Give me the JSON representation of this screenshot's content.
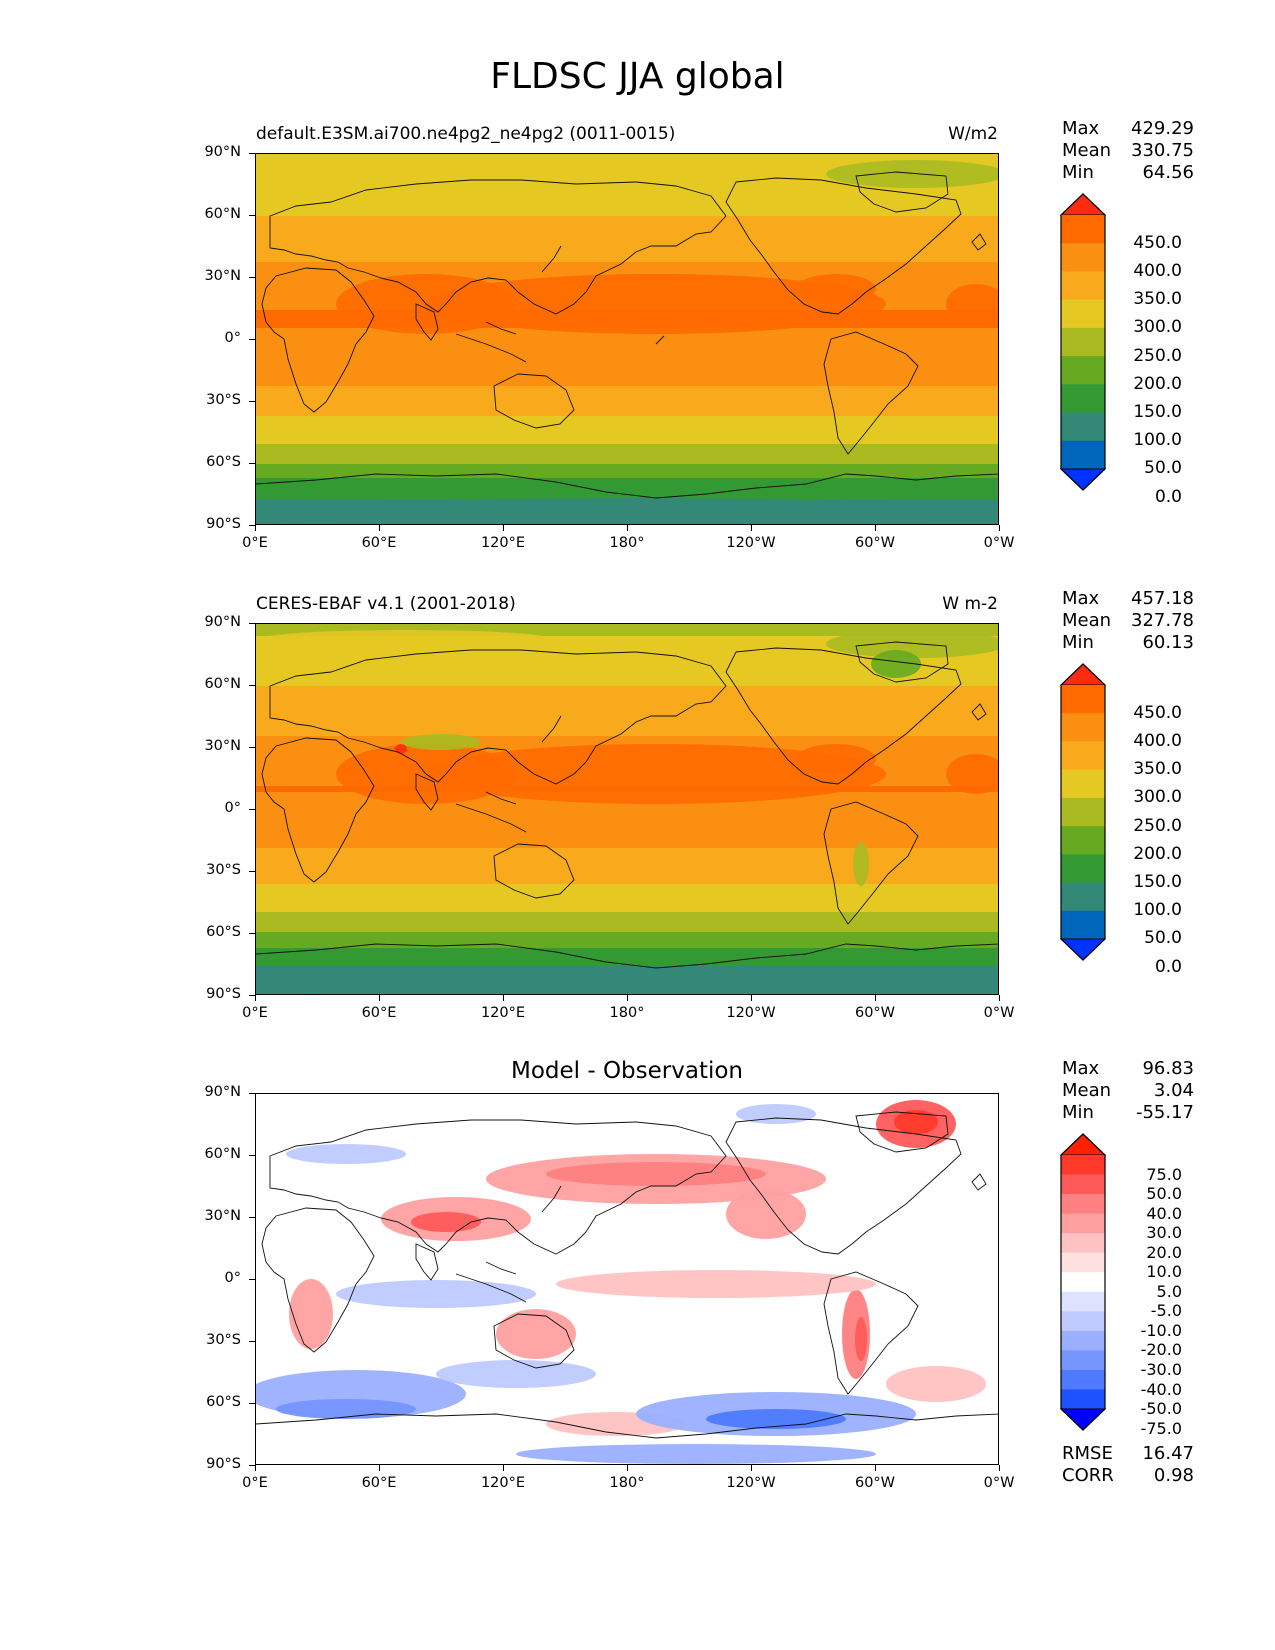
{
  "figure": {
    "title": "FLDSC JJA global"
  },
  "chart_data": [
    {
      "type": "heatmap",
      "title": "default.E3SM.ai700.ne4pg2_ne4pg2 (0011-0015)",
      "units": "W/m2",
      "x_ticks": [
        "0°E",
        "60°E",
        "120°E",
        "180°",
        "120°W",
        "60°W",
        "0°W"
      ],
      "y_ticks": [
        "90°N",
        "60°N",
        "30°N",
        "0°",
        "30°S",
        "60°S",
        "90°S"
      ],
      "stats": {
        "Max": "429.29",
        "Mean": "330.75",
        "Min": "64.56"
      },
      "colorbar_levels": [
        "450.0",
        "400.0",
        "350.0",
        "300.0",
        "250.0",
        "200.0",
        "150.0",
        "100.0",
        "50.0",
        "0.0"
      ],
      "colors": [
        "#0033ff",
        "#0066bb",
        "#338877",
        "#339933",
        "#66aa22",
        "#aabb22",
        "#e6c822",
        "#f8aa1c",
        "#fb8f12",
        "#ff6a00",
        "#ff2b10"
      ],
      "zonal_profile": [
        {
          "lat": 90,
          "value": 250
        },
        {
          "lat": 80,
          "value": 260
        },
        {
          "lat": 70,
          "value": 285
        },
        {
          "lat": 60,
          "value": 300
        },
        {
          "lat": 50,
          "value": 320
        },
        {
          "lat": 40,
          "value": 345
        },
        {
          "lat": 30,
          "value": 370
        },
        {
          "lat": 20,
          "value": 395
        },
        {
          "lat": 10,
          "value": 405
        },
        {
          "lat": 0,
          "value": 390
        },
        {
          "lat": -10,
          "value": 375
        },
        {
          "lat": -20,
          "value": 355
        },
        {
          "lat": -30,
          "value": 320
        },
        {
          "lat": -40,
          "value": 290
        },
        {
          "lat": -50,
          "value": 250
        },
        {
          "lat": -60,
          "value": 195
        },
        {
          "lat": -65,
          "value": 160
        },
        {
          "lat": -70,
          "value": 120
        },
        {
          "lat": -80,
          "value": 90
        },
        {
          "lat": -90,
          "value": 70
        }
      ]
    },
    {
      "type": "heatmap",
      "title": "CERES-EBAF v4.1 (2001-2018)",
      "units": "W m-2",
      "x_ticks": [
        "0°E",
        "60°E",
        "120°E",
        "180°",
        "120°W",
        "60°W",
        "0°W"
      ],
      "y_ticks": [
        "90°N",
        "60°N",
        "30°N",
        "0°",
        "30°S",
        "60°S",
        "90°S"
      ],
      "stats": {
        "Max": "457.18",
        "Mean": "327.78",
        "Min": "60.13"
      },
      "colorbar_levels": [
        "450.0",
        "400.0",
        "350.0",
        "300.0",
        "250.0",
        "200.0",
        "150.0",
        "100.0",
        "50.0",
        "0.0"
      ],
      "colors": [
        "#0033ff",
        "#0066bb",
        "#338877",
        "#339933",
        "#66aa22",
        "#aabb22",
        "#e6c822",
        "#f8aa1c",
        "#fb8f12",
        "#ff6a00",
        "#ff2b10"
      ],
      "zonal_profile": [
        {
          "lat": 90,
          "value": 245
        },
        {
          "lat": 80,
          "value": 255
        },
        {
          "lat": 70,
          "value": 280
        },
        {
          "lat": 60,
          "value": 300
        },
        {
          "lat": 50,
          "value": 320
        },
        {
          "lat": 40,
          "value": 340
        },
        {
          "lat": 30,
          "value": 365
        },
        {
          "lat": 20,
          "value": 390
        },
        {
          "lat": 10,
          "value": 402
        },
        {
          "lat": 0,
          "value": 385
        },
        {
          "lat": -10,
          "value": 365
        },
        {
          "lat": -20,
          "value": 345
        },
        {
          "lat": -30,
          "value": 315
        },
        {
          "lat": -40,
          "value": 285
        },
        {
          "lat": -50,
          "value": 245
        },
        {
          "lat": -60,
          "value": 190
        },
        {
          "lat": -65,
          "value": 160
        },
        {
          "lat": -70,
          "value": 115
        },
        {
          "lat": -80,
          "value": 85
        },
        {
          "lat": -90,
          "value": 65
        }
      ]
    },
    {
      "type": "heatmap",
      "title": "Model - Observation",
      "x_ticks": [
        "0°E",
        "60°E",
        "120°E",
        "180°",
        "120°W",
        "60°W",
        "0°W"
      ],
      "y_ticks": [
        "90°N",
        "60°N",
        "30°N",
        "0°",
        "30°S",
        "60°S",
        "90°S"
      ],
      "stats": {
        "Max": "96.83",
        "Mean": "3.04",
        "Min": "-55.17"
      },
      "metrics": {
        "RMSE": "16.47",
        "CORR": "0.98"
      },
      "colorbar_levels": [
        "75.0",
        "50.0",
        "40.0",
        "30.0",
        "20.0",
        "10.0",
        "5.0",
        "-5.0",
        "-10.0",
        "-20.0",
        "-30.0",
        "-40.0",
        "-50.0",
        "-75.0"
      ],
      "colors": [
        "#0000ff",
        "#1f52ff",
        "#4d7aff",
        "#7595ff",
        "#9aafff",
        "#bfcaff",
        "#dde3ff",
        "#ffffff",
        "#ffe0e0",
        "#ffc2c2",
        "#ffa0a0",
        "#ff8080",
        "#ff5a5a",
        "#ff3a2a",
        "#ff2000"
      ]
    }
  ]
}
